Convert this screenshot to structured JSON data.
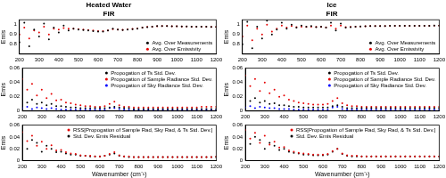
{
  "chart_data": [
    {
      "type": "scatter",
      "title": "Heated Water",
      "subtitle": "FIR",
      "ylabel": "Emis",
      "x": [
        200,
        225,
        250,
        275,
        300,
        325,
        350,
        375,
        400,
        425,
        450,
        475,
        500,
        525,
        550,
        575,
        600,
        625,
        650,
        675,
        700,
        725,
        750,
        775,
        800,
        825,
        850,
        875,
        900,
        925,
        950,
        975,
        1000,
        1025,
        1050,
        1075,
        1100,
        1125,
        1150,
        1175,
        1200
      ],
      "series": [
        {
          "name": "Avg. Over Measurements",
          "color": "#000000",
          "values": [
            0.82,
            1.02,
            0.78,
            0.95,
            0.88,
            1.01,
            0.85,
            0.97,
            0.92,
            0.99,
            0.94,
            0.96,
            0.95,
            0.945,
            0.94,
            0.935,
            0.93,
            0.93,
            0.94,
            0.96,
            0.95,
            0.945,
            0.95,
            0.955,
            0.96,
            0.97,
            0.975,
            0.98,
            0.985,
            0.985,
            0.985,
            0.984,
            0.983,
            0.982,
            0.981,
            0.98,
            0.98,
            0.979,
            0.979,
            0.978,
            0.978
          ]
        },
        {
          "name": "Avg. Over Emissivity",
          "color": "#e60000",
          "values": [
            0.9,
            0.97,
            0.86,
            0.94,
            0.92,
            0.98,
            0.9,
            0.96,
            0.95,
            0.965,
            0.96,
            0.958,
            0.955,
            0.95,
            0.945,
            0.94,
            0.935,
            0.935,
            0.94,
            0.955,
            0.95,
            0.948,
            0.952,
            0.957,
            0.962,
            0.97,
            0.976,
            0.98,
            0.984,
            0.985,
            0.985,
            0.984,
            0.983,
            0.982,
            0.981,
            0.98,
            0.98,
            0.979,
            0.979,
            0.978,
            0.978
          ]
        }
      ],
      "xlim": [
        200,
        1200
      ],
      "xticks": [
        200,
        300,
        400,
        500,
        600,
        700,
        800,
        900,
        1000,
        1100,
        1200
      ],
      "ylim": [
        0.7,
        1.05
      ],
      "yticks": [
        0.8,
        0.9,
        1
      ],
      "grid": false,
      "legend": "lower right",
      "marker": "circle"
    },
    {
      "type": "scatter",
      "ylabel": "Emis",
      "x": [
        200,
        225,
        250,
        275,
        300,
        325,
        350,
        375,
        400,
        425,
        450,
        475,
        500,
        525,
        550,
        575,
        600,
        625,
        650,
        675,
        700,
        725,
        750,
        775,
        800,
        825,
        850,
        875,
        900,
        925,
        950,
        975,
        1000,
        1025,
        1050,
        1075,
        1100,
        1125,
        1150,
        1175,
        1200
      ],
      "series": [
        {
          "name": "Propogation of Ts Std. Dev.",
          "color": "#000000",
          "values": [
            0.02,
            0.012,
            0.016,
            0.01,
            0.012,
            0.008,
            0.01,
            0.007,
            0.007,
            0.006,
            0.005,
            0.005,
            0.004,
            0.004,
            0.004,
            0.004,
            0.004,
            0.004,
            0.005,
            0.006,
            0.005,
            0.004,
            0.004,
            0.003,
            0.003,
            0.003,
            0.003,
            0.003,
            0.003,
            0.003,
            0.003,
            0.003,
            0.003,
            0.003,
            0.003,
            0.003,
            0.003,
            0.003,
            0.003,
            0.003,
            0.003
          ]
        },
        {
          "name": "Propogation of Sample Radiance Std. Dev.",
          "color": "#e60000",
          "values": [
            0.045,
            0.03,
            0.038,
            0.022,
            0.03,
            0.018,
            0.024,
            0.015,
            0.016,
            0.012,
            0.011,
            0.009,
            0.008,
            0.007,
            0.007,
            0.006,
            0.006,
            0.007,
            0.01,
            0.013,
            0.008,
            0.006,
            0.006,
            0.005,
            0.005,
            0.005,
            0.005,
            0.005,
            0.005,
            0.005,
            0.005,
            0.005,
            0.005,
            0.005,
            0.005,
            0.005,
            0.005,
            0.006,
            0.006,
            0.006,
            0.006
          ]
        },
        {
          "name": "Propogation of Sky Radiance Std. Dev.",
          "color": "#0000ff",
          "values": [
            0.004,
            0.006,
            0.003,
            0.005,
            0.004,
            0.003,
            0.004,
            0.003,
            0.002,
            0.002,
            0.002,
            0.002,
            0.002,
            0.002,
            0.002,
            0.002,
            0.002,
            0.002,
            0.004,
            0.004,
            0.003,
            0.002,
            0.002,
            0.002,
            0.002,
            0.002,
            0.002,
            0.002,
            0.002,
            0.002,
            0.002,
            0.002,
            0.002,
            0.002,
            0.002,
            0.002,
            0.002,
            0.002,
            0.002,
            0.002,
            0.002
          ]
        }
      ],
      "xlim": [
        200,
        1200
      ],
      "xticks": [
        200,
        300,
        400,
        500,
        600,
        700,
        800,
        900,
        1000,
        1100,
        1200
      ],
      "ylim": [
        0,
        0.06
      ],
      "yticks": [
        0,
        0.02,
        0.04,
        0.06
      ],
      "grid": false,
      "legend": "upper right",
      "marker": "circle"
    },
    {
      "type": "scatter",
      "ylabel": "Emis",
      "xlabel": "Wavenumber (cm⁻¹)",
      "x": [
        200,
        225,
        250,
        275,
        300,
        325,
        350,
        375,
        400,
        425,
        450,
        475,
        500,
        525,
        550,
        575,
        600,
        625,
        650,
        675,
        700,
        725,
        750,
        775,
        800,
        825,
        850,
        875,
        900,
        925,
        950,
        975,
        1000,
        1025,
        1050,
        1075,
        1100,
        1125,
        1150,
        1175,
        1200
      ],
      "series": [
        {
          "name": "RSS[Propogation of Sample Rad, Sky Rad, & Ts Std. Dev.]",
          "color": "#e60000",
          "values": [
            0.048,
            0.033,
            0.042,
            0.025,
            0.032,
            0.02,
            0.026,
            0.017,
            0.018,
            0.014,
            0.012,
            0.011,
            0.009,
            0.008,
            0.008,
            0.007,
            0.007,
            0.008,
            0.011,
            0.014,
            0.009,
            0.007,
            0.007,
            0.006,
            0.006,
            0.006,
            0.006,
            0.006,
            0.006,
            0.006,
            0.006,
            0.006,
            0.006,
            0.006,
            0.006,
            0.006,
            0.006,
            0.006,
            0.006,
            0.006,
            0.007
          ]
        },
        {
          "name": "Std. Dev. Emis Residual",
          "color": "#000000",
          "values": [
            0.04,
            0.02,
            0.035,
            0.03,
            0.015,
            0.025,
            0.02,
            0.014,
            0.015,
            0.012,
            0.01,
            0.01,
            0.008,
            0.008,
            0.007,
            0.007,
            0.007,
            0.008,
            0.01,
            0.012,
            0.008,
            0.007,
            0.006,
            0.006,
            0.006,
            0.006,
            0.006,
            0.006,
            0.006,
            0.006,
            0.006,
            0.006,
            0.006,
            0.006,
            0.006,
            0.006,
            0.006,
            0.006,
            0.006,
            0.006,
            0.006
          ]
        }
      ],
      "xlim": [
        200,
        1200
      ],
      "xticks": [
        200,
        300,
        400,
        500,
        600,
        700,
        800,
        900,
        1000,
        1100,
        1200
      ],
      "ylim": [
        0,
        0.06
      ],
      "yticks": [
        0,
        0.02,
        0.04,
        0.06
      ],
      "grid": false,
      "legend": "upper right",
      "marker": "circle"
    },
    {
      "type": "scatter",
      "title": "Ice",
      "subtitle": "FIR",
      "ylabel": "Emis",
      "x": [
        200,
        225,
        250,
        275,
        300,
        325,
        350,
        375,
        400,
        425,
        450,
        475,
        500,
        525,
        550,
        575,
        600,
        625,
        650,
        675,
        700,
        725,
        750,
        775,
        800,
        825,
        850,
        875,
        900,
        925,
        950,
        975,
        1000,
        1025,
        1050,
        1075,
        1100,
        1125,
        1150,
        1175,
        1200
      ],
      "series": [
        {
          "name": "Avg. Over Measurements",
          "color": "#000000",
          "values": [
            0.8,
            1.03,
            0.76,
            0.98,
            0.86,
            1.04,
            0.9,
            0.95,
            1.02,
            0.96,
            1.0,
            0.97,
            0.99,
            0.98,
            0.985,
            0.975,
            0.98,
            0.97,
            1.02,
            0.94,
            1.01,
            0.97,
            0.975,
            0.98,
            0.982,
            0.984,
            0.985,
            0.986,
            0.987,
            0.987,
            0.988,
            0.988,
            0.988,
            0.988,
            0.988,
            0.989,
            0.989,
            0.989,
            0.989,
            0.99,
            0.99
          ]
        },
        {
          "name": "Avg. Over Emissivity",
          "color": "#e60000",
          "values": [
            0.88,
            0.99,
            0.84,
            0.96,
            0.9,
            1.0,
            0.93,
            0.96,
            0.99,
            0.97,
            0.985,
            0.975,
            0.98,
            0.978,
            0.98,
            0.976,
            0.978,
            0.972,
            0.99,
            0.96,
            0.99,
            0.975,
            0.976,
            0.98,
            0.982,
            0.984,
            0.985,
            0.986,
            0.987,
            0.987,
            0.988,
            0.988,
            0.988,
            0.988,
            0.988,
            0.989,
            0.989,
            0.989,
            0.989,
            0.99,
            0.99
          ]
        }
      ],
      "xlim": [
        200,
        1200
      ],
      "xticks": [
        200,
        300,
        400,
        500,
        600,
        700,
        800,
        900,
        1000,
        1100,
        1200
      ],
      "ylim": [
        0.7,
        1.05
      ],
      "yticks": [
        0.8,
        0.9,
        1
      ],
      "grid": false,
      "legend": "lower right",
      "marker": "circle"
    },
    {
      "type": "scatter",
      "ylabel": "Emis",
      "x": [
        200,
        225,
        250,
        275,
        300,
        325,
        350,
        375,
        400,
        425,
        450,
        475,
        500,
        525,
        550,
        575,
        600,
        625,
        650,
        675,
        700,
        725,
        750,
        775,
        800,
        825,
        850,
        875,
        900,
        925,
        950,
        975,
        1000,
        1025,
        1050,
        1075,
        1100,
        1125,
        1150,
        1175,
        1200
      ],
      "series": [
        {
          "name": "Propogation of Ts Std. Dev.",
          "color": "#000000",
          "values": [
            0.022,
            0.014,
            0.018,
            0.012,
            0.014,
            0.01,
            0.011,
            0.008,
            0.008,
            0.007,
            0.006,
            0.006,
            0.005,
            0.005,
            0.005,
            0.005,
            0.005,
            0.005,
            0.007,
            0.008,
            0.006,
            0.004,
            0.004,
            0.004,
            0.004,
            0.004,
            0.004,
            0.004,
            0.004,
            0.004,
            0.004,
            0.004,
            0.004,
            0.004,
            0.004,
            0.004,
            0.004,
            0.004,
            0.004,
            0.004,
            0.004
          ]
        },
        {
          "name": "Propogation of Sample Radiance Std. Dev.",
          "color": "#e60000",
          "values": [
            0.05,
            0.035,
            0.045,
            0.028,
            0.04,
            0.025,
            0.03,
            0.02,
            0.022,
            0.016,
            0.014,
            0.012,
            0.011,
            0.01,
            0.009,
            0.009,
            0.009,
            0.01,
            0.014,
            0.018,
            0.011,
            0.008,
            0.007,
            0.007,
            0.006,
            0.006,
            0.006,
            0.006,
            0.006,
            0.006,
            0.006,
            0.006,
            0.006,
            0.006,
            0.006,
            0.006,
            0.006,
            0.006,
            0.006,
            0.006,
            0.006
          ]
        },
        {
          "name": "Propogation of Sky Radiance Std. Dev.",
          "color": "#0000ff",
          "values": [
            0.005,
            0.007,
            0.004,
            0.006,
            0.005,
            0.004,
            0.004,
            0.003,
            0.003,
            0.003,
            0.002,
            0.002,
            0.002,
            0.002,
            0.002,
            0.002,
            0.002,
            0.002,
            0.005,
            0.006,
            0.003,
            0.002,
            0.002,
            0.002,
            0.002,
            0.002,
            0.002,
            0.002,
            0.002,
            0.002,
            0.002,
            0.002,
            0.002,
            0.002,
            0.002,
            0.002,
            0.002,
            0.002,
            0.002,
            0.002,
            0.002
          ]
        }
      ],
      "xlim": [
        200,
        1200
      ],
      "xticks": [
        200,
        300,
        400,
        500,
        600,
        700,
        800,
        900,
        1000,
        1100,
        1200
      ],
      "ylim": [
        0,
        0.06
      ],
      "yticks": [
        0,
        0.02,
        0.04,
        0.06
      ],
      "grid": false,
      "legend": "upper right",
      "marker": "circle"
    },
    {
      "type": "scatter",
      "ylabel": "Emis",
      "xlabel": "Wavenumber (cm⁻¹)",
      "x": [
        200,
        225,
        250,
        275,
        300,
        325,
        350,
        375,
        400,
        425,
        450,
        475,
        500,
        525,
        550,
        575,
        600,
        625,
        650,
        675,
        700,
        725,
        750,
        775,
        800,
        825,
        850,
        875,
        900,
        925,
        950,
        975,
        1000,
        1025,
        1050,
        1075,
        1100,
        1125,
        1150,
        1175,
        1200
      ],
      "series": [
        {
          "name": "RSS[Propogation of Sample Rad, Sky Rad, & Ts Std. Dev.]",
          "color": "#e60000",
          "values": [
            0.052,
            0.037,
            0.047,
            0.03,
            0.042,
            0.027,
            0.032,
            0.022,
            0.023,
            0.017,
            0.015,
            0.013,
            0.012,
            0.011,
            0.01,
            0.01,
            0.01,
            0.011,
            0.016,
            0.02,
            0.012,
            0.009,
            0.008,
            0.008,
            0.007,
            0.007,
            0.007,
            0.007,
            0.007,
            0.007,
            0.007,
            0.007,
            0.007,
            0.007,
            0.007,
            0.007,
            0.007,
            0.007,
            0.007,
            0.007,
            0.007
          ]
        },
        {
          "name": "Std. Dev. Emis Residual",
          "color": "#000000",
          "values": [
            0.045,
            0.028,
            0.04,
            0.035,
            0.02,
            0.03,
            0.025,
            0.018,
            0.02,
            0.015,
            0.013,
            0.012,
            0.01,
            0.01,
            0.009,
            0.009,
            0.009,
            0.01,
            0.015,
            0.02,
            0.011,
            0.008,
            0.007,
            0.007,
            0.007,
            0.007,
            0.007,
            0.007,
            0.007,
            0.007,
            0.007,
            0.007,
            0.007,
            0.007,
            0.007,
            0.007,
            0.007,
            0.007,
            0.007,
            0.007,
            0.007
          ]
        }
      ],
      "xlim": [
        200,
        1200
      ],
      "xticks": [
        200,
        300,
        400,
        500,
        600,
        700,
        800,
        900,
        1000,
        1100,
        1200
      ],
      "ylim": [
        0,
        0.06
      ],
      "yticks": [
        0,
        0.02,
        0.04,
        0.06
      ],
      "grid": false,
      "legend": "upper right",
      "marker": "circle"
    }
  ]
}
